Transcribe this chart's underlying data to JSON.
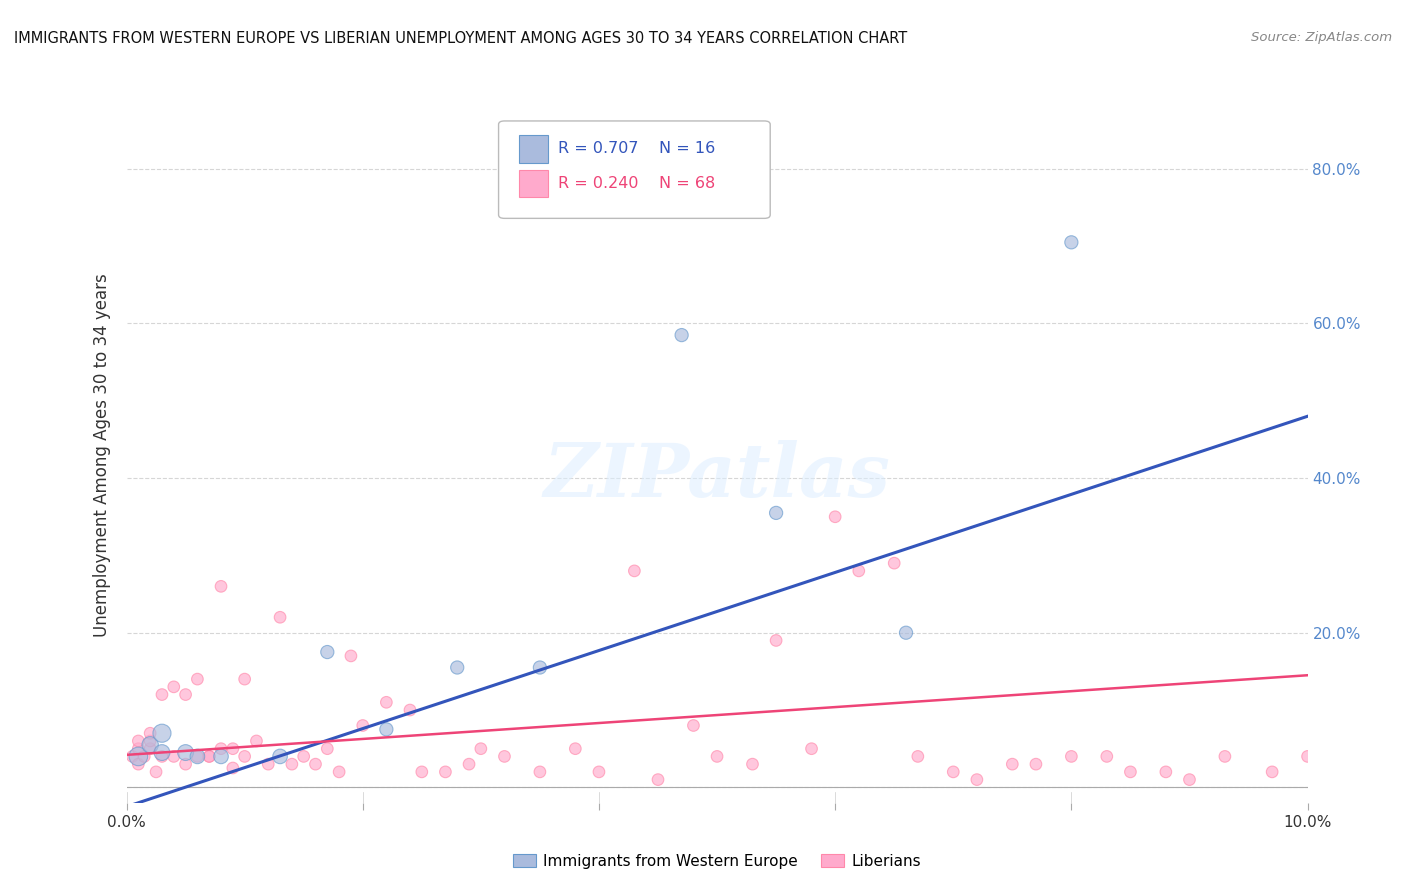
{
  "title": "IMMIGRANTS FROM WESTERN EUROPE VS LIBERIAN UNEMPLOYMENT AMONG AGES 30 TO 34 YEARS CORRELATION CHART",
  "source": "Source: ZipAtlas.com",
  "ylabel": "Unemployment Among Ages 30 to 34 years",
  "xlim": [
    0.0,
    0.1
  ],
  "ylim": [
    -0.02,
    0.88
  ],
  "x_ticks": [
    0.0,
    0.02,
    0.04,
    0.06,
    0.08,
    0.1
  ],
  "x_tick_labels": [
    "0.0%",
    "",
    "",
    "",
    "",
    "10.0%"
  ],
  "y_ticks": [
    0.0,
    0.2,
    0.4,
    0.6,
    0.8
  ],
  "y_tick_labels": [
    "",
    "20.0%",
    "40.0%",
    "60.0%",
    "80.0%"
  ],
  "legend_blue_r": "R = 0.707",
  "legend_blue_n": "N = 16",
  "legend_pink_r": "R = 0.240",
  "legend_pink_n": "N = 68",
  "legend_label_blue": "Immigrants from Western Europe",
  "legend_label_pink": "Liberians",
  "watermark": "ZIPatlas",
  "blue_fill_color": "#aabbdd",
  "blue_edge_color": "#6699cc",
  "pink_fill_color": "#ffaacc",
  "pink_edge_color": "#ff88aa",
  "blue_line_color": "#3355bb",
  "pink_line_color": "#ee4477",
  "legend_blue_text": "#3355bb",
  "legend_pink_text": "#ee4477",
  "right_axis_color": "#5588cc",
  "background_color": "#ffffff",
  "grid_color": "#cccccc",
  "blue_scatter": {
    "x": [
      0.001,
      0.002,
      0.003,
      0.003,
      0.005,
      0.006,
      0.008,
      0.013,
      0.017,
      0.022,
      0.028,
      0.035,
      0.047,
      0.055,
      0.066,
      0.08
    ],
    "y": [
      0.04,
      0.055,
      0.045,
      0.07,
      0.045,
      0.04,
      0.04,
      0.04,
      0.175,
      0.075,
      0.155,
      0.155,
      0.585,
      0.355,
      0.2,
      0.705
    ],
    "sizes": [
      180,
      140,
      130,
      170,
      130,
      110,
      110,
      110,
      90,
      90,
      90,
      90,
      90,
      90,
      90,
      90
    ]
  },
  "pink_scatter": {
    "x": [
      0.0005,
      0.001,
      0.001,
      0.001,
      0.0015,
      0.002,
      0.002,
      0.002,
      0.0025,
      0.003,
      0.003,
      0.004,
      0.004,
      0.005,
      0.005,
      0.006,
      0.006,
      0.007,
      0.007,
      0.008,
      0.008,
      0.009,
      0.009,
      0.01,
      0.01,
      0.011,
      0.012,
      0.013,
      0.014,
      0.015,
      0.016,
      0.017,
      0.018,
      0.019,
      0.02,
      0.022,
      0.024,
      0.025,
      0.027,
      0.029,
      0.03,
      0.032,
      0.035,
      0.038,
      0.04,
      0.043,
      0.045,
      0.048,
      0.05,
      0.053,
      0.055,
      0.058,
      0.06,
      0.062,
      0.065,
      0.067,
      0.07,
      0.072,
      0.075,
      0.077,
      0.08,
      0.083,
      0.085,
      0.088,
      0.09,
      0.093,
      0.097,
      0.1
    ],
    "y": [
      0.04,
      0.05,
      0.06,
      0.03,
      0.04,
      0.05,
      0.06,
      0.07,
      0.02,
      0.04,
      0.12,
      0.04,
      0.13,
      0.12,
      0.03,
      0.04,
      0.14,
      0.04,
      0.04,
      0.26,
      0.05,
      0.05,
      0.025,
      0.14,
      0.04,
      0.06,
      0.03,
      0.22,
      0.03,
      0.04,
      0.03,
      0.05,
      0.02,
      0.17,
      0.08,
      0.11,
      0.1,
      0.02,
      0.02,
      0.03,
      0.05,
      0.04,
      0.02,
      0.05,
      0.02,
      0.28,
      0.01,
      0.08,
      0.04,
      0.03,
      0.19,
      0.05,
      0.35,
      0.28,
      0.29,
      0.04,
      0.02,
      0.01,
      0.03,
      0.03,
      0.04,
      0.04,
      0.02,
      0.02,
      0.01,
      0.04,
      0.02,
      0.04
    ],
    "sizes": [
      70,
      70,
      70,
      70,
      70,
      70,
      70,
      70,
      70,
      70,
      70,
      70,
      70,
      70,
      70,
      70,
      70,
      70,
      70,
      70,
      70,
      70,
      70,
      70,
      70,
      70,
      70,
      70,
      70,
      70,
      70,
      70,
      70,
      70,
      70,
      70,
      70,
      70,
      70,
      70,
      70,
      70,
      70,
      70,
      70,
      70,
      70,
      70,
      70,
      70,
      70,
      70,
      70,
      70,
      70,
      70,
      70,
      70,
      70,
      70,
      70,
      70,
      70,
      70,
      70,
      70,
      70,
      70
    ]
  },
  "blue_line": {
    "x": [
      0.0,
      0.1
    ],
    "y": [
      -0.025,
      0.48
    ]
  },
  "pink_line": {
    "x": [
      0.0,
      0.1
    ],
    "y": [
      0.042,
      0.145
    ]
  }
}
